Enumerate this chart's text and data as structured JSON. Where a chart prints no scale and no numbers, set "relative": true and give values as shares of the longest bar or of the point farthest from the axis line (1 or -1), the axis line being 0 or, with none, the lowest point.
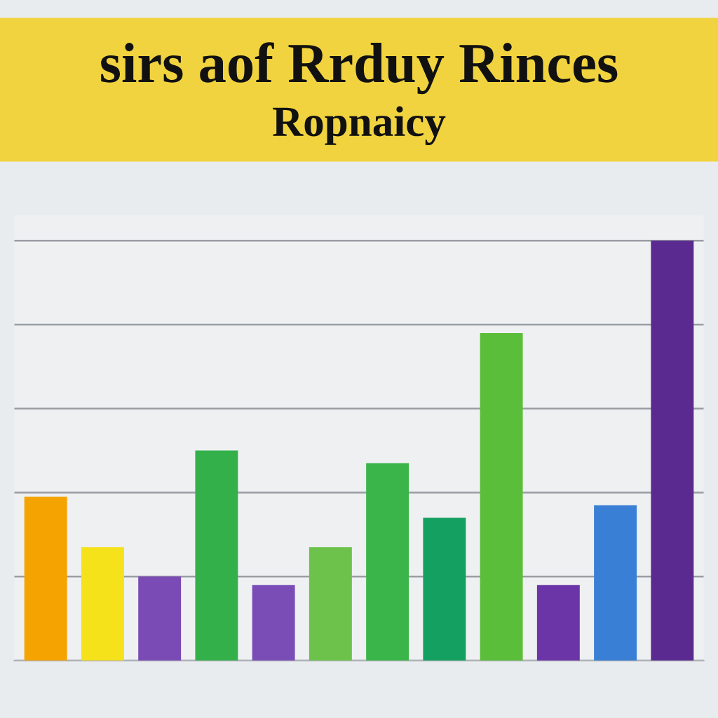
{
  "chart_data": {
    "type": "bar",
    "title": "sirs aof Rrduy Rinces",
    "subtitle": "Ropnaicy",
    "categories": [
      null,
      null,
      null,
      null,
      null,
      null,
      null,
      null,
      null,
      null,
      null,
      null
    ],
    "values": [
      0.39,
      0.27,
      0.2,
      0.5,
      0.18,
      0.27,
      0.47,
      0.34,
      0.78,
      0.18,
      0.37,
      1
    ],
    "colors": [
      "#f5a300",
      "#f6e21a",
      "#7b4bb5",
      "#33b04a",
      "#7a4db6",
      "#6cc24a",
      "#3ab54a",
      "#13a060",
      "#5abe3a",
      "#6b35a8",
      "#3a7fd6",
      "#5b2a90"
    ],
    "relative": true,
    "grid": "y"
  }
}
